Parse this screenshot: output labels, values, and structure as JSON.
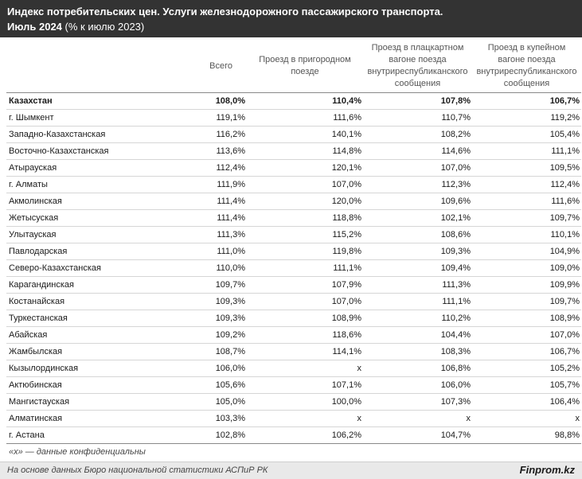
{
  "header": {
    "title": "Индекс потребительских цен. Услуги железнодорожного пассажирского транспорта.",
    "period_bold": "Июль 2024",
    "period_rest": " (% к июлю 2023)"
  },
  "chart_data": {
    "type": "table",
    "columns": [
      "",
      "Всего",
      "Проезд в пригородном поезде",
      "Проезд в плацкартном вагоне поезда внутриреспубликанского сообщения",
      "Проезд в купейном вагоне поезда внутриреспубликанского сообщения"
    ],
    "rows": [
      [
        "Казахстан",
        "108,0%",
        "110,4%",
        "107,8%",
        "106,7%"
      ],
      [
        "г. Шымкент",
        "119,1%",
        "111,6%",
        "110,7%",
        "119,2%"
      ],
      [
        "Западно-Казахстанская",
        "116,2%",
        "140,1%",
        "108,2%",
        "105,4%"
      ],
      [
        "Восточно-Казахстанская",
        "113,6%",
        "114,8%",
        "114,6%",
        "111,1%"
      ],
      [
        "Атырауская",
        "112,4%",
        "120,1%",
        "107,0%",
        "109,5%"
      ],
      [
        "г. Алматы",
        "111,9%",
        "107,0%",
        "112,3%",
        "112,4%"
      ],
      [
        "Акмолинская",
        "111,4%",
        "120,0%",
        "109,6%",
        "111,6%"
      ],
      [
        "Жетысуская",
        "111,4%",
        "118,8%",
        "102,1%",
        "109,7%"
      ],
      [
        "Улытауская",
        "111,3%",
        "115,2%",
        "108,6%",
        "110,1%"
      ],
      [
        "Павлодарская",
        "111,0%",
        "119,8%",
        "109,3%",
        "104,9%"
      ],
      [
        "Северо-Казахстанская",
        "110,0%",
        "111,1%",
        "109,4%",
        "109,0%"
      ],
      [
        "Карагандинская",
        "109,7%",
        "107,9%",
        "111,3%",
        "109,9%"
      ],
      [
        "Костанайская",
        "109,3%",
        "107,0%",
        "111,1%",
        "109,7%"
      ],
      [
        "Туркестанская",
        "109,3%",
        "108,9%",
        "110,2%",
        "108,9%"
      ],
      [
        "Абайская",
        "109,2%",
        "118,6%",
        "104,4%",
        "107,0%"
      ],
      [
        "Жамбылская",
        "108,7%",
        "114,1%",
        "108,3%",
        "106,7%"
      ],
      [
        "Кызылординская",
        "106,0%",
        "x",
        "106,8%",
        "105,2%"
      ],
      [
        "Актюбинская",
        "105,6%",
        "107,1%",
        "106,0%",
        "105,7%"
      ],
      [
        "Мангистауская",
        "105,0%",
        "100,0%",
        "107,3%",
        "106,4%"
      ],
      [
        "Алматинская",
        "103,3%",
        "x",
        "x",
        "x"
      ],
      [
        "г. Астана",
        "102,8%",
        "106,2%",
        "104,7%",
        "98,8%"
      ]
    ]
  },
  "note": "«x» — данные конфиденциальны",
  "footer": {
    "source": "На основе данных Бюро национальной статистики АСПиР РК",
    "brand": "Finprom.kz"
  }
}
